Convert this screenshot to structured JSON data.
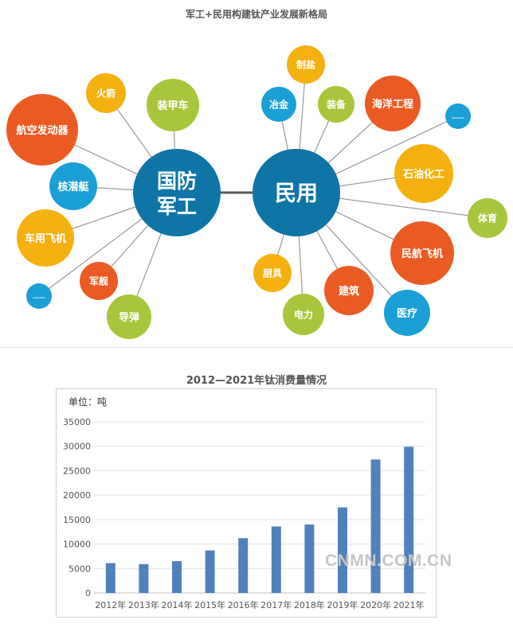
{
  "diagram": {
    "title": "军工+民用构建钛产业发展新格局",
    "hub_military": [
      "国防",
      "军工"
    ],
    "hub_civil": "民用",
    "military_items": [
      "火箭",
      "装甲车",
      "航空发动器",
      "核潜艇",
      "车用飞机",
      "军舰",
      "……",
      "导弹"
    ],
    "civil_items": [
      "制盐",
      "冶金",
      "装备",
      "海洋工程",
      "……",
      "石油化工",
      "体育",
      "民航飞机",
      "厨具",
      "建筑",
      "电力",
      "医疗"
    ],
    "colors": {
      "blue": "#1a9fd6",
      "dark_blue": "#0f75a6",
      "orange": "#ea5b24",
      "yellow": "#f4b10f",
      "green": "#a8c63b"
    }
  },
  "unit_label": "单位：吨",
  "watermark": "CNMN.COM.CN",
  "chart_data": {
    "type": "bar",
    "title": "2012—2021年钛消费量情况",
    "categories": [
      "2012年",
      "2013年",
      "2014年",
      "2015年",
      "2016年",
      "2017年",
      "2018年",
      "2019年",
      "2020年",
      "2021年"
    ],
    "values": [
      6100,
      5900,
      6500,
      8700,
      11200,
      13600,
      14000,
      17500,
      27300,
      29900
    ],
    "ylim": [
      0,
      35000
    ],
    "yticks": [
      "0",
      "5000",
      "10000",
      "15000",
      "20000",
      "25000",
      "30000",
      "35000"
    ],
    "grid": true,
    "bar_color": "#4f81bd"
  }
}
